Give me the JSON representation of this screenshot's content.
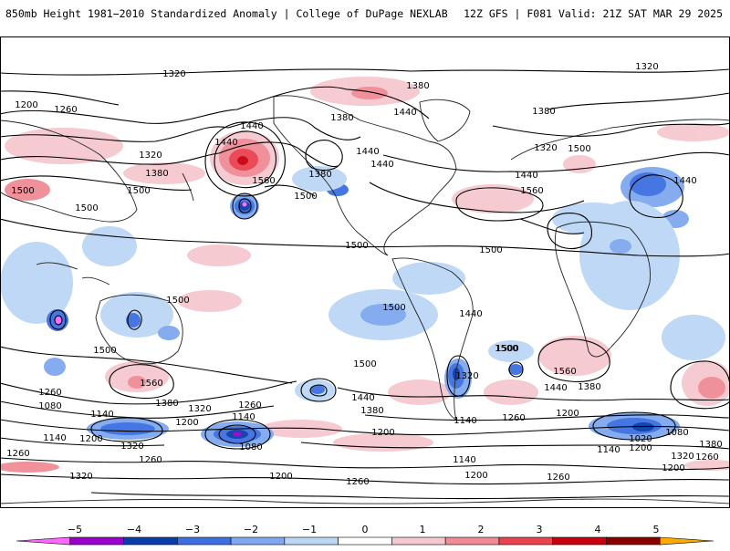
{
  "header": {
    "title": "850mb Height 1981−2010 Standardized Anomaly | College of DuPage NEXLAB",
    "valid": "12Z GFS | F081 Valid: 21Z SAT MAR 29 2025"
  },
  "colorbar": {
    "ticks": [
      "−5",
      "−4",
      "−3",
      "−2",
      "−1",
      "0",
      "1",
      "2",
      "3",
      "4",
      "5"
    ],
    "colors": [
      "#ff66ff",
      "#9900cc",
      "#0a3da8",
      "#3d6fe0",
      "#7fa8ef",
      "#bcd6f6",
      "#ffffff",
      "#f6c8cf",
      "#f08b95",
      "#e8434f",
      "#c8000f",
      "#8a0000",
      "#ffaa00"
    ]
  },
  "map": {
    "contour_labels": [
      {
        "text": "1320"
      },
      {
        "text": "1200"
      },
      {
        "text": "1260"
      },
      {
        "text": "1380"
      },
      {
        "text": "1440"
      },
      {
        "text": "1320"
      },
      {
        "text": "1380"
      },
      {
        "text": "1500"
      },
      {
        "text": "1500"
      },
      {
        "text": "1440"
      },
      {
        "text": "1560"
      },
      {
        "text": "1380"
      },
      {
        "text": "1500"
      },
      {
        "text": "1440"
      },
      {
        "text": "1440"
      },
      {
        "text": "1380"
      },
      {
        "text": "1440"
      },
      {
        "text": "1380"
      },
      {
        "text": "1320"
      },
      {
        "text": "1500"
      },
      {
        "text": "1560"
      },
      {
        "text": "1440"
      },
      {
        "text": "1440"
      },
      {
        "text": "1500"
      },
      {
        "text": "1500"
      },
      {
        "text": "1500"
      },
      {
        "text": "1500"
      },
      {
        "text": "1500"
      },
      {
        "text": "1500"
      },
      {
        "text": "1440"
      },
      {
        "text": "1560"
      },
      {
        "text": "1500"
      },
      {
        "text": "1260"
      },
      {
        "text": "1080"
      },
      {
        "text": "1140"
      },
      {
        "text": "1200"
      },
      {
        "text": "1320"
      },
      {
        "text": "1260"
      },
      {
        "text": "1140"
      },
      {
        "text": "1080"
      },
      {
        "text": "1380"
      },
      {
        "text": "1320"
      },
      {
        "text": "1260"
      },
      {
        "text": "1200"
      },
      {
        "text": "1500"
      },
      {
        "text": "1440"
      },
      {
        "text": "1380"
      },
      {
        "text": "1200"
      },
      {
        "text": "1140"
      },
      {
        "text": "1320"
      },
      {
        "text": "1260"
      },
      {
        "text": "1200"
      },
      {
        "text": "1500"
      },
      {
        "text": "1560"
      },
      {
        "text": "1440"
      },
      {
        "text": "1380"
      },
      {
        "text": "1200"
      },
      {
        "text": "1080"
      },
      {
        "text": "1020"
      },
      {
        "text": "1140"
      },
      {
        "text": "1200"
      },
      {
        "text": "1320"
      },
      {
        "text": "1380"
      },
      {
        "text": "1260"
      },
      {
        "text": "1320"
      },
      {
        "text": "1140"
      },
      {
        "text": "1200"
      },
      {
        "text": "1260"
      },
      {
        "text": "1200"
      },
      {
        "text": "1260"
      },
      {
        "text": "1260"
      },
      {
        "text": "1140"
      },
      {
        "text": "1200"
      },
      {
        "text": "1260"
      },
      {
        "text": "1320"
      }
    ]
  }
}
